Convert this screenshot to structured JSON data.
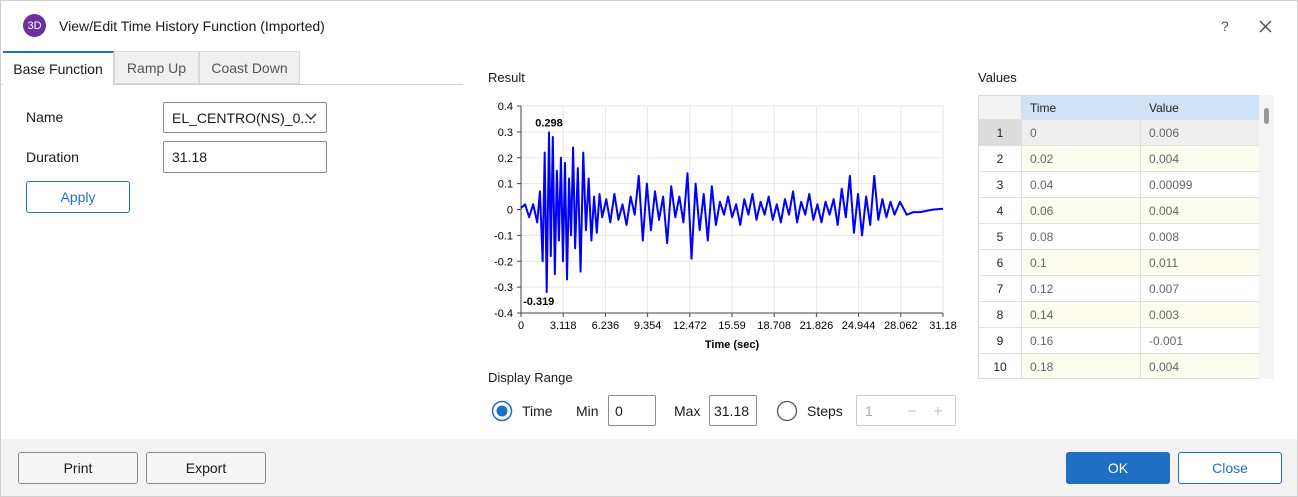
{
  "title_bar": {
    "icon": "3D",
    "title": "View/Edit Time History Function (Imported)",
    "help": "?"
  },
  "tabs": [
    "Base Function",
    "Ramp Up",
    "Coast Down"
  ],
  "form": {
    "name_label": "Name",
    "name_value": "EL_CENTRO(NS)_0....",
    "duration_label": "Duration",
    "duration_value": "31.18",
    "apply": "Apply"
  },
  "result_label": "Result",
  "chart_data": {
    "type": "line",
    "xlabel": "Time (sec)",
    "color": "#0000ff",
    "grid": true,
    "x": [
      0,
      0.3,
      0.6,
      0.9,
      1.2,
      1.4,
      1.6,
      1.75,
      1.9,
      2.07,
      2.2,
      2.35,
      2.5,
      2.65,
      2.8,
      2.95,
      3.1,
      3.25,
      3.4,
      3.55,
      3.7,
      3.85,
      4.0,
      4.2,
      4.4,
      4.6,
      4.8,
      5.0,
      5.2,
      5.4,
      5.6,
      5.8,
      6.0,
      6.3,
      6.6,
      6.9,
      7.2,
      7.5,
      7.8,
      8.1,
      8.4,
      8.7,
      9.0,
      9.3,
      9.6,
      9.9,
      10.2,
      10.5,
      10.8,
      11.1,
      11.4,
      11.7,
      12.0,
      12.3,
      12.6,
      12.9,
      13.2,
      13.5,
      13.8,
      14.1,
      14.4,
      14.7,
      15.0,
      15.3,
      15.6,
      15.9,
      16.2,
      16.5,
      16.8,
      17.1,
      17.4,
      17.7,
      18.0,
      18.3,
      18.6,
      18.9,
      19.2,
      19.5,
      19.8,
      20.1,
      20.4,
      20.7,
      21.0,
      21.3,
      21.6,
      21.9,
      22.2,
      22.5,
      22.8,
      23.1,
      23.4,
      23.7,
      24.0,
      24.3,
      24.6,
      24.9,
      25.2,
      25.5,
      25.8,
      26.1,
      26.4,
      26.7,
      27.0,
      27.3,
      27.6,
      28.0,
      28.5,
      29.0,
      29.5,
      30.0,
      30.5,
      31.18
    ],
    "values": [
      0.006,
      0.02,
      -0.03,
      0.02,
      -0.05,
      0.07,
      -0.2,
      0.22,
      -0.319,
      0.298,
      -0.18,
      0.28,
      -0.25,
      0.15,
      -0.12,
      0.2,
      -0.2,
      0.18,
      -0.27,
      0.12,
      -0.1,
      0.24,
      -0.15,
      0.16,
      -0.24,
      0.22,
      -0.08,
      0.12,
      -0.12,
      0.05,
      -0.09,
      0.06,
      -0.03,
      0.04,
      -0.05,
      0.06,
      -0.04,
      0.02,
      -0.06,
      0.05,
      -0.02,
      0.13,
      -0.12,
      0.1,
      -0.08,
      0.07,
      -0.04,
      0.05,
      -0.13,
      0.09,
      -0.03,
      0.05,
      -0.05,
      0.14,
      -0.19,
      0.1,
      -0.08,
      0.06,
      -0.12,
      0.09,
      -0.06,
      0.03,
      -0.02,
      0.05,
      -0.03,
      0.02,
      -0.06,
      0.04,
      -0.02,
      0.06,
      -0.04,
      0.03,
      -0.02,
      0.05,
      -0.04,
      0.02,
      -0.05,
      0.04,
      -0.02,
      0.07,
      -0.05,
      0.03,
      -0.02,
      0.06,
      -0.04,
      0.02,
      -0.05,
      0.03,
      -0.02,
      0.04,
      -0.06,
      0.08,
      -0.03,
      0.13,
      -0.09,
      0.06,
      -0.1,
      0.05,
      -0.06,
      0.13,
      -0.04,
      0.04,
      -0.03,
      0.03,
      -0.02,
      0.03,
      -0.02,
      -0.01,
      -0.01,
      -0.005,
      0.0,
      0.003
    ],
    "xlim": [
      0,
      31.18
    ],
    "xticks": [
      0,
      3.118,
      6.236,
      9.354,
      12.472,
      15.59,
      18.708,
      21.826,
      24.944,
      28.062,
      31.18
    ],
    "ylim": [
      -0.4,
      0.4
    ],
    "yticks": [
      -0.4,
      -0.3,
      -0.2,
      -0.1,
      0,
      0.1,
      0.2,
      0.3,
      0.4
    ],
    "annotations": [
      {
        "x": 2.07,
        "y": 0.298
      },
      {
        "x": 1.9,
        "y": -0.319
      }
    ]
  },
  "display_range": {
    "title": "Display Range",
    "time": "Time",
    "min_label": "Min",
    "min_value": "0",
    "max_label": "Max",
    "max_value": "31.18",
    "steps": "Steps",
    "steps_value": "1"
  },
  "values_table": {
    "title": "Values",
    "columns": [
      "Time",
      "Value"
    ],
    "rows": [
      [
        "1",
        "0",
        "0.006"
      ],
      [
        "2",
        "0.02",
        "0.004"
      ],
      [
        "3",
        "0.04",
        "0.00099"
      ],
      [
        "4",
        "0.06",
        "0.004"
      ],
      [
        "5",
        "0.08",
        "0.008"
      ],
      [
        "6",
        "0.1",
        "0.011"
      ],
      [
        "7",
        "0.12",
        "0.007"
      ],
      [
        "8",
        "0.14",
        "0.003"
      ],
      [
        "9",
        "0.16",
        "-0.001"
      ],
      [
        "10",
        "0.18",
        "0.004"
      ]
    ]
  },
  "footer": {
    "print": "Print",
    "export": "Export",
    "ok": "OK",
    "close": "Close"
  }
}
